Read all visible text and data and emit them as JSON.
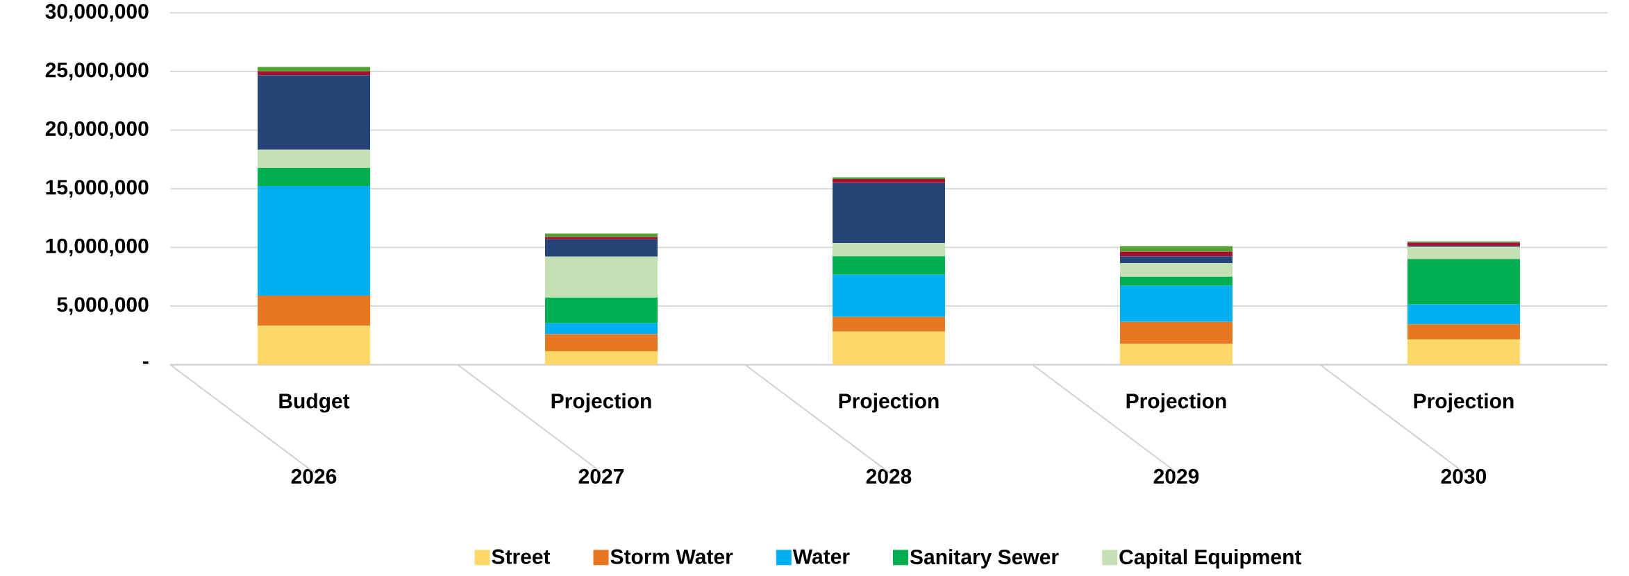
{
  "chart_data": {
    "type": "bar",
    "stacked": true,
    "categories": [
      "2026",
      "2027",
      "2028",
      "2029",
      "2030"
    ],
    "annotations": [
      "Budget",
      "Projection",
      "Projection",
      "Projection",
      "Projection"
    ],
    "series": [
      {
        "name": "Street",
        "color": "#fdd868",
        "values": [
          3310000.0,
          1150000.0,
          2830000.0,
          1770000.0,
          2160000.0
        ]
      },
      {
        "name": "Storm Water",
        "color": "#e87722",
        "values": [
          2570000.0,
          1450000.0,
          1240000.0,
          1890000.0,
          1280000.0
        ]
      },
      {
        "name": "Water",
        "color": "#00b0f0",
        "values": [
          9360000.0,
          940000.0,
          3610000.0,
          3070000.0,
          1700000.0
        ]
      },
      {
        "name": "Sanitary Sewer",
        "color": "#00ae4f",
        "values": [
          1530000.0,
          2190000.0,
          1560000.0,
          770000.0,
          3870000.0
        ]
      },
      {
        "name": "Capital Equipment",
        "color": "#c5e0b4",
        "values": [
          1560000.0,
          3480000.0,
          1150000.0,
          1150000.0,
          1040000.0
        ]
      },
      {
        "color": "#264478",
        "values": [
          6350000.0,
          1480000.0,
          5110000.0,
          590000.0,
          80000.0
        ]
      },
      {
        "color": "#a8102f",
        "values": [
          330000.0,
          200000.0,
          330000.0,
          410000.0,
          290000.0
        ]
      },
      {
        "color": "#52a532",
        "values": [
          380000.0,
          300000.0,
          140000.0,
          450000.0,
          80000.0
        ]
      }
    ],
    "ylim": [
      0,
      30000000
    ],
    "yticks": [
      {
        "value": 0,
        "label": "-"
      },
      {
        "value": 5000000,
        "label": "5,000,000"
      },
      {
        "value": 10000000,
        "label": "10,000,000"
      },
      {
        "value": 15000000,
        "label": "15,000,000"
      },
      {
        "value": 20000000,
        "label": "20,000,000"
      },
      {
        "value": 25000000,
        "label": "25,000,000"
      },
      {
        "value": 30000000,
        "label": "30,000,000"
      }
    ],
    "grid": "y",
    "legend": "bottom"
  }
}
